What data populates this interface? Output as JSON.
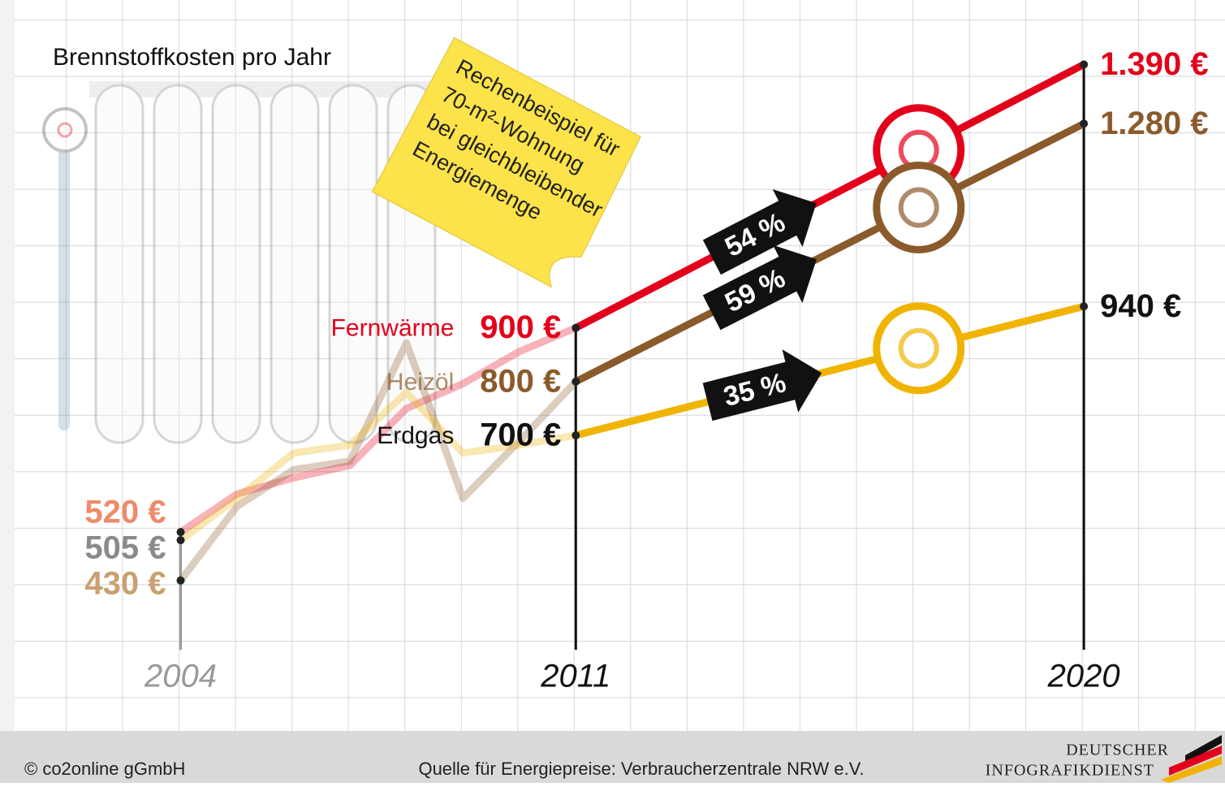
{
  "chart_data": {
    "type": "line",
    "title": "Brennstoffkosten pro Jahr",
    "note": [
      "Rechenbeispiel für",
      "70-m²-Wohnung",
      "bei gleichbleibender",
      "Energiemenge"
    ],
    "x": [
      2004,
      2005,
      2006,
      2007,
      2008,
      2009,
      2010,
      2011,
      2020
    ],
    "xlim": [
      2000.8,
      2022.5
    ],
    "xticks": [
      2004,
      2011,
      2020
    ],
    "ylim": [
      150,
      1510
    ],
    "series": [
      {
        "name": "Fernwärme",
        "color": "#e3001b",
        "label_color": "#e3001b",
        "start_color": "#ef8a6a",
        "values": [
          520,
          591,
          621,
          644,
          750,
          796,
          856,
          900,
          1390
        ],
        "value_labels": [
          "520 €",
          null,
          null,
          null,
          null,
          null,
          null,
          "900 €",
          "1.390 €"
        ],
        "change_label": "54 %"
      },
      {
        "name": "Heizöl",
        "color": "#8b5a2b",
        "label_color": "#8b5a2b",
        "start_color": "#c9a070",
        "values": [
          430,
          568,
          636,
          652,
          872,
          583,
          689,
          800,
          1280
        ],
        "value_labels": [
          "430 €",
          null,
          null,
          null,
          null,
          null,
          null,
          "800 €",
          "1.280 €"
        ],
        "change_label": "59 %"
      },
      {
        "name": "Erdgas",
        "color": "#f0b400",
        "label_color": "#111111",
        "start_color": "#8a8a8a",
        "values": [
          505,
          583,
          667,
          682,
          780,
          667,
          682,
          700,
          940
        ],
        "value_labels": [
          "505 €",
          null,
          null,
          null,
          null,
          null,
          null,
          "700 €",
          "940 €"
        ],
        "change_label": "35 %"
      }
    ]
  },
  "footer": {
    "copyright": "© co2online gGmbH",
    "source": "Quelle für Energiepreise: Verbraucherzentrale NRW e.V.",
    "logo": [
      "DEUTSCHER",
      "INFOGRAFIKDIENST"
    ]
  }
}
